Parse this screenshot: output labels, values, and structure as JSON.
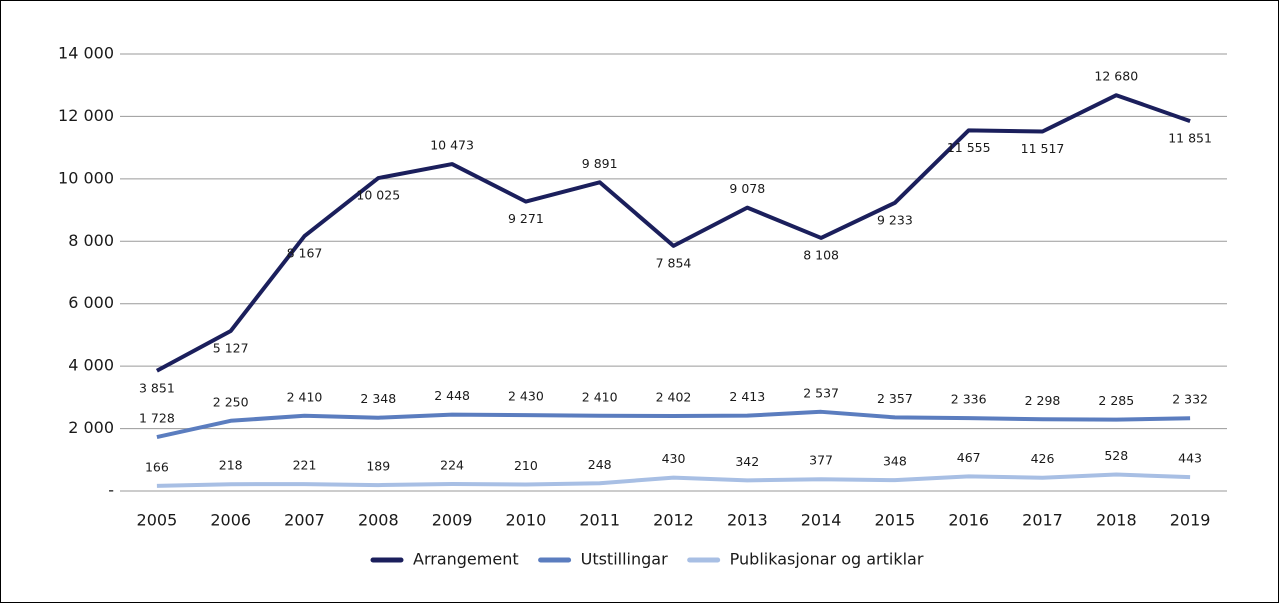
{
  "chart_data": {
    "type": "line",
    "categories": [
      "2005",
      "2006",
      "2007",
      "2008",
      "2009",
      "2010",
      "2011",
      "2012",
      "2013",
      "2014",
      "2015",
      "2016",
      "2017",
      "2018",
      "2019"
    ],
    "series": [
      {
        "name": "Arrangement",
        "color": "#1b1f5c",
        "values": [
          3851,
          5127,
          8167,
          10025,
          10473,
          9271,
          9891,
          7854,
          9078,
          8108,
          9233,
          11555,
          11517,
          12680,
          11851
        ],
        "value_labels": [
          "3 851",
          "5 127",
          "8 167",
          "10 025",
          "10 473",
          "9 271",
          "9 891",
          "7 854",
          "9 078",
          "8 108",
          "9 233",
          "11 555",
          "11 517",
          "12 680",
          "11 851"
        ]
      },
      {
        "name": "Utstillingar",
        "color": "#5b7dbf",
        "values": [
          1728,
          2250,
          2410,
          2348,
          2448,
          2430,
          2410,
          2402,
          2413,
          2537,
          2357,
          2336,
          2298,
          2285,
          2332
        ],
        "value_labels": [
          "1 728",
          "2 250",
          "2 410",
          "2 348",
          "2 448",
          "2 430",
          "2 410",
          "2 402",
          "2 413",
          "2 537",
          "2 357",
          "2 336",
          "2 298",
          "2 285",
          "2 332"
        ]
      },
      {
        "name": "Publikasjonar og artiklar",
        "color": "#a8bfe4",
        "values": [
          166,
          218,
          221,
          189,
          224,
          210,
          248,
          430,
          342,
          377,
          348,
          467,
          426,
          528,
          443
        ]
      }
    ],
    "ylim": [
      0,
      14000
    ],
    "yticks": [
      {
        "value": 0,
        "label": "-"
      },
      {
        "value": 2000,
        "label": "2 000"
      },
      {
        "value": 4000,
        "label": "4 000"
      },
      {
        "value": 6000,
        "label": "6 000"
      },
      {
        "value": 8000,
        "label": "8 000"
      },
      {
        "value": 10000,
        "label": "10 000"
      },
      {
        "value": 12000,
        "label": "12 000"
      },
      {
        "value": 14000,
        "label": "14 000"
      }
    ],
    "grid": true,
    "legend": "bottom"
  }
}
